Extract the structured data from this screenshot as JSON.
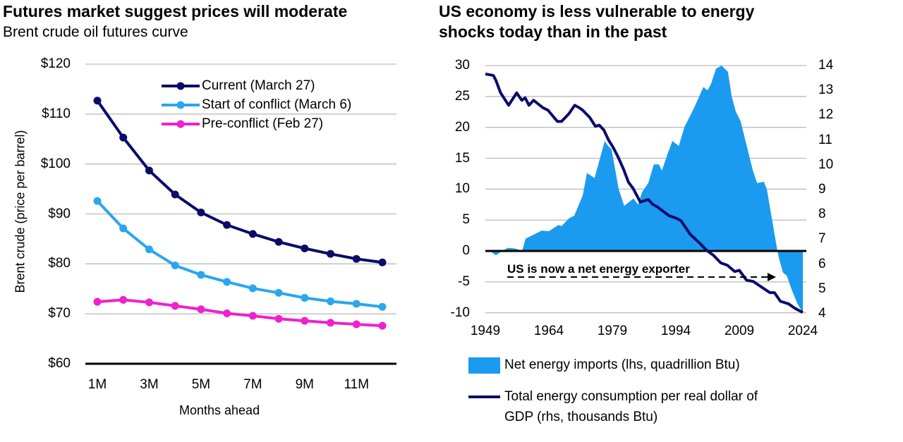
{
  "chart_data": [
    {
      "type": "line",
      "title": "Futures market suggest prices will moderate",
      "subtitle": "Brent crude oil futures curve",
      "xlabel": "Months ahead",
      "ylabel": "Brent crude (price per barrel)",
      "ylim": [
        60,
        120
      ],
      "yticks": [
        "$60",
        "$70",
        "$80",
        "$90",
        "$100",
        "$110",
        "$120"
      ],
      "xticks": [
        "1M",
        "3M",
        "5M",
        "7M",
        "9M",
        "11M"
      ],
      "x": [
        1,
        2,
        3,
        4,
        5,
        6,
        7,
        8,
        9,
        10,
        11,
        12
      ],
      "grid": true,
      "legend_position": "top-right",
      "series": [
        {
          "name": "Current (March 27)",
          "color": "#0b0b6b",
          "values": [
            112.7,
            105.3,
            98.7,
            93.9,
            90.3,
            87.8,
            86.0,
            84.4,
            83.1,
            82.0,
            81.0,
            80.3
          ]
        },
        {
          "name": "Start of conflict (March 6)",
          "color": "#2aa6ee",
          "values": [
            92.6,
            87.1,
            82.9,
            79.7,
            77.8,
            76.4,
            75.1,
            74.2,
            73.2,
            72.5,
            72.0,
            71.4
          ]
        },
        {
          "name": "Pre-conflict (Feb 27)",
          "color": "#ee22cc",
          "values": [
            72.4,
            72.8,
            72.3,
            71.6,
            70.9,
            70.1,
            69.6,
            69.0,
            68.6,
            68.2,
            67.9,
            67.6
          ]
        }
      ]
    },
    {
      "type": "area+line",
      "title": "US economy is less vulnerable to energy shocks today than in the past",
      "title_lines": [
        "US economy is less vulnerable to energy",
        "shocks today than in the past"
      ],
      "xlim": [
        1949,
        2024
      ],
      "xticks": [
        "1949",
        "1964",
        "1979",
        "1994",
        "2009",
        "2024"
      ],
      "ylim_left": [
        -10,
        30
      ],
      "yticks_left": [
        "30",
        "25",
        "20",
        "15",
        "10",
        "5",
        "0",
        "-5",
        "-10"
      ],
      "ylim_right": [
        4,
        14
      ],
      "yticks_right": [
        "14",
        "13",
        "12",
        "11",
        "10",
        "9",
        "8",
        "7",
        "6",
        "5",
        "4"
      ],
      "grid": true,
      "legend_position": "bottom",
      "annotation": "US is now a net energy exporter",
      "series": [
        {
          "name": "Net energy imports (lhs, quadrillion Btu)",
          "axis": "left",
          "color": "#1a9bef",
          "x": [
            1949,
            1950,
            1951.5,
            1953,
            1954.3,
            1956,
            1957.7,
            1958.5,
            1960,
            1962.3,
            1964,
            1966.3,
            1967,
            1968.8,
            1970,
            1972,
            1973,
            1974.8,
            1977.2,
            1978,
            1978.8,
            1980.5,
            1981.8,
            1984,
            1985.1,
            1986,
            1987.5,
            1988.8,
            1990,
            1990.7,
            1992.2,
            1993.2,
            1994.7,
            1996,
            1998.2,
            2000.5,
            2001.5,
            2002.3,
            2003.5,
            2004.8,
            2006.3,
            2007.2,
            2008.2,
            2009.3,
            2012.2,
            2013.2,
            2014.8,
            2015.5,
            2018,
            2018.3,
            2019.3,
            2020.2,
            2021.5,
            2022.7,
            2024
          ],
          "values": [
            0,
            0,
            -0.7,
            0,
            0.5,
            0.4,
            0,
            2,
            2.5,
            3.3,
            3.2,
            4.2,
            4.0,
            5.3,
            5.7,
            9,
            12.6,
            11.8,
            17.8,
            17,
            16.5,
            10,
            7.3,
            8.5,
            7.5,
            9.5,
            11,
            14,
            14,
            13,
            16,
            17.8,
            17,
            20,
            23,
            26.5,
            26,
            27,
            29.5,
            30,
            29,
            25,
            22.5,
            21,
            13,
            11,
            11.2,
            10,
            0,
            -1,
            -3.5,
            -4,
            -6.5,
            -8.5,
            -10
          ]
        },
        {
          "name": "Total energy consumption per real dollar of GDP (rhs, thousands Btu)",
          "name_lines": [
            "Total energy consumption per real dollar of",
            "GDP (rhs, thousands Btu)"
          ],
          "axis": "right",
          "color": "#0b0b6b",
          "x": [
            1949,
            1950.9,
            1951.5,
            1952.6,
            1954.5,
            1956.4,
            1957.6,
            1958.4,
            1959.3,
            1960.4,
            1962.6,
            1963.8,
            1966,
            1967,
            1968.7,
            1970.1,
            1971.2,
            1972,
            1973.7,
            1975,
            1975.9,
            1977,
            1978.1,
            1979.2,
            1980.4,
            1981.7,
            1982.8,
            1983.9,
            1985.6,
            1987.5,
            1988.6,
            1989.7,
            1990.8,
            1992.4,
            1994.1,
            1995.2,
            1997.4,
            1999.6,
            2001.3,
            2002.9,
            2004.6,
            2006.2,
            2007.9,
            2009,
            2010.7,
            2012.3,
            2014,
            2016.2,
            2017.3,
            2018.7,
            2020.6,
            2022.3,
            2024
          ],
          "values": [
            13.66,
            13.6,
            13.4,
            12.9,
            12.4,
            12.9,
            12.6,
            12.7,
            12.4,
            12.6,
            12.3,
            12.2,
            11.75,
            11.75,
            12.05,
            12.4,
            12.3,
            12.2,
            11.9,
            11.55,
            11.6,
            11.4,
            11.0,
            10.7,
            10.3,
            9.8,
            9.3,
            9.05,
            8.5,
            8.6,
            8.4,
            8.3,
            8.15,
            7.95,
            7.85,
            7.75,
            7.2,
            6.85,
            6.55,
            6.35,
            6.05,
            5.95,
            5.7,
            5.75,
            5.35,
            5.3,
            5.1,
            4.85,
            4.85,
            4.5,
            4.4,
            4.2,
            4.05
          ]
        }
      ]
    }
  ]
}
